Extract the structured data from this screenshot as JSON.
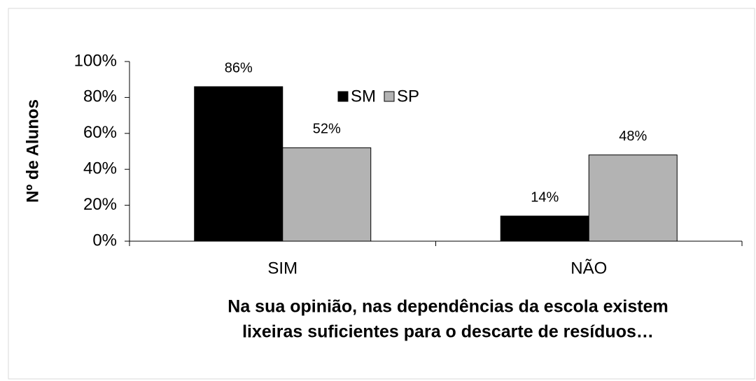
{
  "chart_data": {
    "type": "bar",
    "categories": [
      "SIM",
      "NÃO"
    ],
    "series": [
      {
        "name": "SM",
        "color": "#000000",
        "values": [
          86,
          14
        ],
        "value_labels": [
          "86%",
          "14%"
        ]
      },
      {
        "name": "SP",
        "color": "#b3b3b3",
        "values": [
          52,
          48
        ],
        "value_labels": [
          "52%",
          "48%"
        ]
      }
    ],
    "ylabel": "Nº de Alunos",
    "xlabel": [
      "Na sua opinião, nas dependências da escola existem",
      "lixeiras suficientes para o descarte de resíduos…"
    ],
    "ylim": [
      0,
      100
    ],
    "yticks": [
      {
        "value": 0,
        "label": "0%"
      },
      {
        "value": 20,
        "label": "20%"
      },
      {
        "value": 40,
        "label": "40%"
      },
      {
        "value": 60,
        "label": "60%"
      },
      {
        "value": 80,
        "label": "80%"
      },
      {
        "value": 100,
        "label": "100%"
      }
    ],
    "legend": "top"
  }
}
